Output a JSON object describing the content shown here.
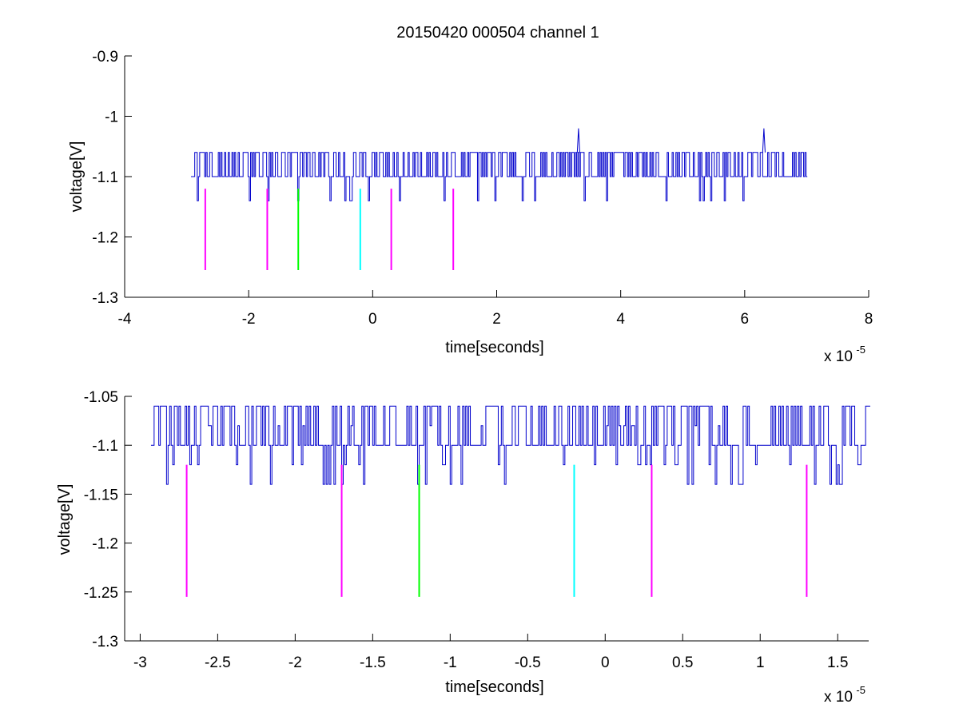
{
  "figure": {
    "title": "20150420 000504 channel 1"
  },
  "chart_data": [
    {
      "type": "line",
      "xlabel": "time[seconds]",
      "ylabel": "voltage[V]",
      "x_exponent_base": "x 10",
      "x_exponent_power": "-5",
      "xlim": [
        -4e-05,
        8e-05
      ],
      "ylim": [
        -1.3,
        -0.9
      ],
      "xticks": [
        -4e-05,
        -2e-05,
        0,
        2e-05,
        4e-05,
        6e-05,
        8e-05
      ],
      "xtick_labels": [
        "-4",
        "-2",
        "0",
        "2",
        "4",
        "6",
        "8"
      ],
      "yticks": [
        -0.9,
        -1.0,
        -1.1,
        -1.2,
        -1.3
      ],
      "ytick_labels": [
        "-0.9",
        "-1",
        "-1.1",
        "-1.2",
        "-1.3"
      ],
      "grid": false,
      "series": [
        {
          "color": "#0000cc",
          "x_start": -2.93e-05,
          "x_step": 2e-07,
          "baseline": -1.1,
          "levels": [
            -1.06,
            -1.1,
            -1.14
          ],
          "spikes": [
            {
              "x": 3.32e-05,
              "y": -1.02
            },
            {
              "x": 6.31e-05,
              "y": -1.02
            }
          ],
          "x_end": 7e-05
        }
      ],
      "markers": [
        {
          "x": -2.7e-05,
          "y_top": -1.12,
          "y_bottom": -1.255,
          "color": "#ff00ff"
        },
        {
          "x": -1.7e-05,
          "y_top": -1.12,
          "y_bottom": -1.255,
          "color": "#ff00ff"
        },
        {
          "x": -1.2e-05,
          "y_top": -1.12,
          "y_bottom": -1.255,
          "color": "#00ff00"
        },
        {
          "x": -2e-06,
          "y_top": -1.12,
          "y_bottom": -1.255,
          "color": "#00ffff"
        },
        {
          "x": 3e-06,
          "y_top": -1.12,
          "y_bottom": -1.255,
          "color": "#ff00ff"
        },
        {
          "x": 1.3e-05,
          "y_top": -1.12,
          "y_bottom": -1.255,
          "color": "#ff00ff"
        }
      ]
    },
    {
      "type": "line",
      "xlabel": "time[seconds]",
      "ylabel": "voltage[V]",
      "x_exponent_base": "x 10",
      "x_exponent_power": "-5",
      "xlim": [
        -3.1e-05,
        1.7e-05
      ],
      "ylim": [
        -1.3,
        -1.05
      ],
      "xticks": [
        -3e-05,
        -2.5e-05,
        -2e-05,
        -1.5e-05,
        -1e-05,
        -5e-06,
        0,
        5e-06,
        1e-05,
        1.5e-05
      ],
      "xtick_labels": [
        "-3",
        "-2.5",
        "-2",
        "-1.5",
        "-1",
        "-0.5",
        "0",
        "0.5",
        "1",
        "1.5"
      ],
      "yticks": [
        -1.05,
        -1.1,
        -1.15,
        -1.2,
        -1.25,
        -1.3
      ],
      "ytick_labels": [
        "-1.05",
        "-1.1",
        "-1.15",
        "-1.2",
        "-1.25",
        "-1.3"
      ],
      "grid": false,
      "series": [
        {
          "color": "#0000cc",
          "x_start": -2.93e-05,
          "x_step": 1e-07,
          "baseline": -1.1,
          "levels": [
            -1.06,
            -1.08,
            -1.1,
            -1.12,
            -1.14
          ],
          "x_end": 1.7e-05
        }
      ],
      "markers": [
        {
          "x": -2.7e-05,
          "y_top": -1.12,
          "y_bottom": -1.255,
          "color": "#ff00ff"
        },
        {
          "x": -1.7e-05,
          "y_top": -1.12,
          "y_bottom": -1.255,
          "color": "#ff00ff"
        },
        {
          "x": -1.2e-05,
          "y_top": -1.12,
          "y_bottom": -1.255,
          "color": "#00ff00"
        },
        {
          "x": -2e-06,
          "y_top": -1.12,
          "y_bottom": -1.255,
          "color": "#00ffff"
        },
        {
          "x": 3e-06,
          "y_top": -1.12,
          "y_bottom": -1.255,
          "color": "#ff00ff"
        },
        {
          "x": 1.3e-05,
          "y_top": -1.12,
          "y_bottom": -1.255,
          "color": "#ff00ff"
        }
      ]
    }
  ]
}
